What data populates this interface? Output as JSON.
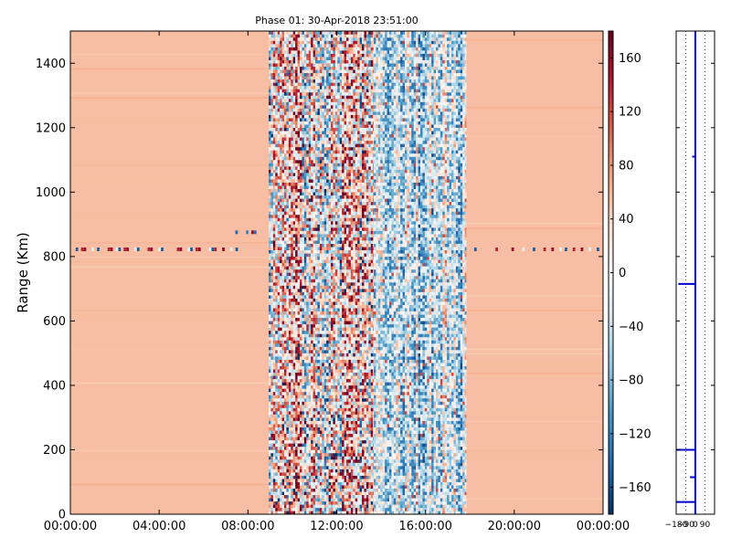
{
  "chart_data": [
    {
      "type": "heatmap",
      "title": "Phase 01: 30-Apr-2018 23:51:00",
      "xlabel": "",
      "ylabel": "Range (Km)",
      "x_ticks": [
        "00:00:00",
        "04:00:00",
        "08:00:00",
        "12:00:00",
        "16:00:00",
        "20:00:00",
        "00:00:00"
      ],
      "y_ticks": [
        "0",
        "200",
        "400",
        "600",
        "800",
        "1000",
        "1200",
        "1400"
      ],
      "xlim": [
        "00:00:00",
        "24:00:00"
      ],
      "ylim": [
        0,
        1500
      ],
      "colormap": "RdBu_r",
      "vmin": -180,
      "vmax": 180,
      "colorbar_ticks": [
        "160",
        "120",
        "80",
        "40",
        "0",
        "−40",
        "−80",
        "−120",
        "−160"
      ],
      "colorbar_tick_values": [
        160,
        120,
        80,
        40,
        0,
        -40,
        -80,
        -120,
        -160
      ],
      "background_value": 55,
      "regions": [
        {
          "x_start": "00:00:00",
          "x_end": "08:56:00",
          "pattern": "uniform",
          "value": 55
        },
        {
          "x_start": "08:56:00",
          "x_end": "13:40:00",
          "pattern": "noisy",
          "value_min": -180,
          "value_max": 180,
          "bias": 20
        },
        {
          "x_start": "13:40:00",
          "x_end": "17:50:00",
          "pattern": "noisy",
          "value_min": -120,
          "value_max": 120,
          "bias": -30
        },
        {
          "x_start": "17:50:00",
          "x_end": "24:00:00",
          "pattern": "uniform",
          "value": 55
        }
      ],
      "streaks": [
        {
          "x_start": "06:50:00",
          "x_end": "08:56:00",
          "range_km": 875,
          "values": [
            -140,
            60,
            -120,
            160
          ]
        },
        {
          "x_start": "00:00:00",
          "x_end": "08:00:00",
          "range_km": 822,
          "values": [
            -150,
            140,
            160,
            -20
          ]
        },
        {
          "x_start": "17:50:00",
          "x_end": "24:00:00",
          "range_km": 822,
          "values": [
            -150,
            140,
            160,
            -20
          ]
        }
      ]
    },
    {
      "type": "line",
      "title": "",
      "xlabel": "",
      "ylabel": "",
      "x_ticks": [
        "−180",
        "−90",
        "0",
        "90"
      ],
      "x_tick_values": [
        -180,
        -90,
        0,
        90
      ],
      "xlim": [
        -180,
        180
      ],
      "ylim": [
        0,
        1500
      ],
      "grid": true,
      "line_color": "#0000cc",
      "series": [
        {
          "points": [
            [
              0,
              0
            ],
            [
              0,
              38
            ],
            [
              -180,
              38
            ],
            [
              0,
              38
            ],
            [
              0,
              115
            ],
            [
              -50,
              115
            ],
            [
              0,
              115
            ],
            [
              0,
              200
            ],
            [
              -180,
              200
            ],
            [
              0,
              200
            ],
            [
              0,
              715
            ],
            [
              -160,
              715
            ],
            [
              0,
              715
            ],
            [
              0,
              1110
            ],
            [
              -30,
              1110
            ],
            [
              0,
              1110
            ],
            [
              0,
              1500
            ]
          ]
        }
      ]
    }
  ]
}
